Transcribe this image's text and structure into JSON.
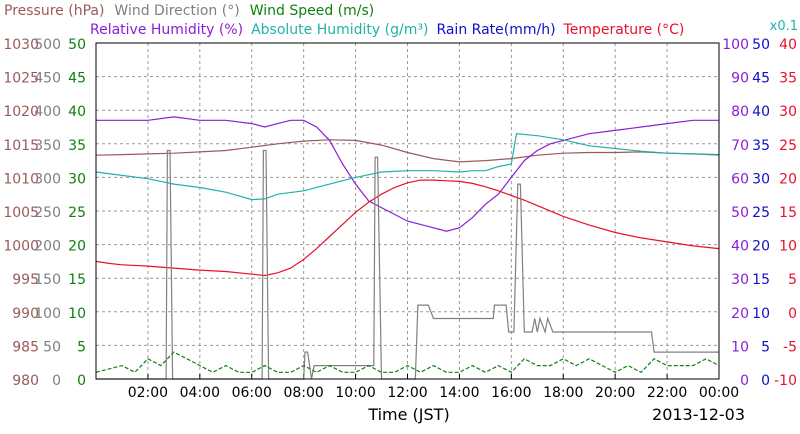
{
  "chart_data": {
    "type": "line",
    "date_label": "2013-12-03",
    "xlabel": "Time (JST)",
    "x_ticks": [
      "02:00",
      "04:00",
      "06:00",
      "08:00",
      "10:00",
      "12:00",
      "14:00",
      "16:00",
      "18:00",
      "20:00",
      "22:00",
      "00:00"
    ],
    "xlim_hours": [
      0,
      24
    ],
    "legend": {
      "row1": [
        {
          "text": "Pressure (hPa)",
          "color": "#9b5a5a"
        },
        {
          "text": "Wind Direction (°)",
          "color": "#808080"
        },
        {
          "text": "Wind Speed (m/s)",
          "color": "#108010"
        }
      ],
      "row2": [
        {
          "text": "Relative Humidity (%)",
          "color": "#8a1ed8"
        },
        {
          "text": "Absolute Humidity (g/m³)",
          "color": "#20b2aa"
        },
        {
          "text": "Rain Rate(mm/h)",
          "color": "#1010c8"
        },
        {
          "text": "Temperature (°C)",
          "color": "#e8102a"
        }
      ],
      "extra": {
        "text": "x0.1",
        "color": "#20b2aa"
      }
    },
    "axes": {
      "pressure": {
        "ticks": [
          "1030",
          "1025",
          "1020",
          "1015",
          "1010",
          "1005",
          "1000",
          "995",
          "990",
          "985",
          "980"
        ],
        "range": [
          980,
          1030
        ],
        "color": "#9b5a5a"
      },
      "wind_direction": {
        "ticks": [
          "500",
          "450",
          "400",
          "350",
          "300",
          "250",
          "200",
          "150",
          "100",
          "50",
          "0"
        ],
        "range": [
          0,
          500
        ],
        "color": "#808080"
      },
      "wind_speed": {
        "ticks": [
          "50",
          "45",
          "40",
          "35",
          "30",
          "25",
          "20",
          "15",
          "10",
          "5",
          "0"
        ],
        "range": [
          0,
          50
        ],
        "color": "#108010"
      },
      "relative_humidity": {
        "ticks": [
          "100",
          "90",
          "80",
          "70",
          "60",
          "50",
          "40",
          "30",
          "20",
          "10",
          "0"
        ],
        "range": [
          0,
          100
        ],
        "color": "#8a1ed8"
      },
      "rain_rate": {
        "ticks": [
          "50",
          "45",
          "40",
          "35",
          "30",
          "25",
          "20",
          "15",
          "10",
          "5",
          "0"
        ],
        "range": [
          0,
          50
        ],
        "color": "#1010c8"
      },
      "temperature": {
        "ticks": [
          "40",
          "35",
          "30",
          "25",
          "20",
          "15",
          "10",
          "5",
          "0",
          "-5",
          "-10"
        ],
        "range": [
          -10,
          40
        ],
        "color": "#e8102a"
      }
    },
    "series": [
      {
        "name": "Pressure (hPa)",
        "axis": "pressure",
        "color": "#9b5a5a",
        "x": [
          0,
          1,
          2,
          3,
          4,
          5,
          6,
          7,
          8,
          9,
          10,
          11,
          12,
          13,
          14,
          15,
          16,
          17,
          18,
          19,
          20,
          21,
          22,
          23,
          24
        ],
        "y": [
          1013.3,
          1013.4,
          1013.5,
          1013.6,
          1013.8,
          1014.0,
          1014.5,
          1015.0,
          1015.4,
          1015.6,
          1015.5,
          1014.8,
          1013.7,
          1012.8,
          1012.3,
          1012.5,
          1012.8,
          1013.3,
          1013.6,
          1013.7,
          1013.7,
          1013.8,
          1013.6,
          1013.5,
          1013.4
        ]
      },
      {
        "name": "Relative Humidity (%)",
        "axis": "relative_humidity",
        "color": "#8a1ed8",
        "x": [
          0,
          0.5,
          1,
          2,
          3,
          4,
          5,
          6,
          6.5,
          7,
          7.5,
          8,
          8.5,
          9,
          9.5,
          10,
          10.5,
          11,
          12,
          12.5,
          13,
          13.5,
          14,
          14.5,
          15,
          15.5,
          16,
          16.5,
          17,
          17.5,
          18,
          19,
          20,
          21,
          22,
          23,
          24
        ],
        "y": [
          77,
          77,
          77,
          77,
          78,
          77,
          77,
          76,
          75,
          76,
          77,
          77,
          75,
          71,
          64,
          58,
          53,
          51,
          47,
          46,
          45,
          44,
          45,
          48,
          52,
          55,
          60,
          65,
          68,
          70,
          71,
          73,
          74,
          75,
          76,
          77,
          77
        ]
      },
      {
        "name": "Absolute Humidity (g/m³)",
        "axis": "pressure",
        "color": "#20b2aa",
        "x": [
          0,
          1,
          2,
          3,
          4,
          5,
          6,
          6.5,
          7,
          8,
          9,
          10,
          11,
          12,
          13,
          14,
          14.5,
          15,
          15.5,
          16,
          16.2,
          17,
          18,
          19,
          20,
          21,
          22,
          23,
          24
        ],
        "y": [
          1010.8,
          1010.3,
          1009.8,
          1009.0,
          1008.5,
          1007.8,
          1006.7,
          1006.8,
          1007.5,
          1008.0,
          1009.0,
          1010.0,
          1010.8,
          1011.0,
          1011.0,
          1010.8,
          1011.0,
          1011.0,
          1011.6,
          1012.0,
          1016.5,
          1016.2,
          1015.6,
          1014.7,
          1014.3,
          1013.9,
          1013.6,
          1013.5,
          1013.3
        ]
      },
      {
        "name": "Temperature (°C)",
        "axis": "temperature",
        "color": "#e8102a",
        "x": [
          0,
          0.5,
          1,
          2,
          3,
          4,
          5,
          6,
          6.5,
          7,
          7.5,
          8,
          8.5,
          9,
          9.5,
          10,
          10.5,
          11,
          11.5,
          12,
          12.5,
          13,
          13.5,
          14,
          14.5,
          15,
          15.5,
          16,
          16.5,
          17,
          18,
          19,
          20,
          21,
          22,
          23,
          24
        ],
        "y": [
          7.5,
          7.2,
          7.0,
          6.8,
          6.5,
          6.2,
          6.0,
          5.6,
          5.4,
          5.8,
          6.5,
          7.8,
          9.4,
          11.2,
          13.0,
          14.8,
          16.3,
          17.5,
          18.5,
          19.2,
          19.6,
          19.6,
          19.5,
          19.4,
          19.1,
          18.6,
          18.0,
          17.3,
          16.6,
          15.8,
          14.2,
          12.9,
          11.8,
          11.0,
          10.4,
          9.8,
          9.4
        ]
      },
      {
        "name": "Wind Direction (°)",
        "axis": "wind_direction",
        "color": "#808080",
        "x": [
          0,
          2.7,
          2.75,
          2.85,
          2.95,
          3.0,
          6.4,
          6.45,
          6.55,
          6.65,
          6.7,
          8.0,
          8.05,
          8.15,
          8.3,
          8.4,
          10.0,
          10.7,
          10.75,
          10.85,
          11.0,
          11.05,
          12.3,
          12.4,
          12.8,
          13.0,
          15.3,
          15.35,
          15.8,
          15.9,
          16.1,
          16.25,
          16.35,
          16.5,
          16.55,
          16.8,
          16.9,
          17.0,
          17.1,
          17.3,
          17.4,
          17.6,
          17.7,
          21.4,
          21.5,
          24
        ],
        "y": [
          0,
          0,
          340,
          340,
          0,
          0,
          0,
          340,
          340,
          0,
          0,
          0,
          40,
          40,
          0,
          20,
          20,
          20,
          330,
          330,
          0,
          0,
          0,
          110,
          110,
          90,
          90,
          110,
          110,
          70,
          70,
          290,
          290,
          70,
          70,
          70,
          90,
          70,
          90,
          70,
          90,
          70,
          70,
          70,
          40,
          40
        ]
      },
      {
        "name": "Wind Speed (m/s)",
        "axis": "wind_speed",
        "color": "#108010",
        "x": [
          0,
          1,
          1.5,
          2,
          2.5,
          3,
          3.5,
          4,
          4.5,
          5,
          5.5,
          6,
          6.5,
          7,
          7.5,
          8,
          8.5,
          9,
          9.5,
          10,
          10.5,
          11,
          11.5,
          12,
          12.5,
          13,
          13.5,
          14,
          14.5,
          15,
          15.5,
          16,
          16.5,
          17,
          17.5,
          18,
          18.5,
          19,
          19.5,
          20,
          20.5,
          21,
          21.5,
          22,
          22.5,
          23,
          23.5,
          24
        ],
        "y": [
          1,
          2,
          1,
          3,
          2,
          4,
          3,
          2,
          1,
          2,
          1,
          1,
          2,
          1,
          1,
          2,
          1,
          2,
          1,
          1,
          2,
          1,
          1,
          2,
          1,
          2,
          1,
          1,
          2,
          1,
          2,
          1,
          3,
          2,
          2,
          3,
          2,
          3,
          2,
          1,
          2,
          1,
          3,
          2,
          2,
          2,
          3,
          2
        ]
      }
    ]
  }
}
